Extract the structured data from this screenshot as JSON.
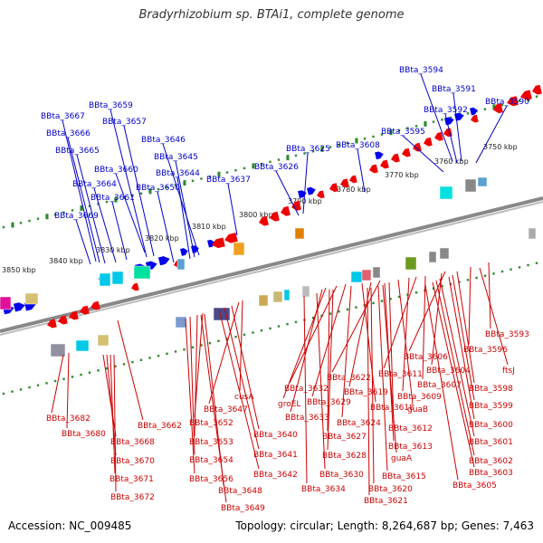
{
  "title": "Bradyrhizobium sp. BTAi1, complete genome",
  "footer": {
    "accession": "Accession: NC_009485",
    "summary": "Topology: circular; Length: 8,264,687 bp; Genes: 7,463"
  },
  "colors": {
    "forward_gene": "#0000ee",
    "reverse_gene": "#ee0000",
    "top_label": "#0000cc",
    "bottom_label": "#cc0000",
    "tick": "#2e8b2e",
    "backbone": "#888888"
  },
  "scale_labels": [
    "3750 kbp",
    "3760 kbp",
    "3770 kbp",
    "3780 kbp",
    "3790 kbp",
    "3800 kbp",
    "3810 kbp",
    "3820 kbp",
    "3830 kbp",
    "3840 kbp",
    "3850 kbp"
  ],
  "top_labels": [
    "BBta_3594",
    "BBta_3591",
    "BBta_3592",
    "BBta_3590",
    "BBta_3595",
    "BBta_3608",
    "BBta_3625",
    "BBta_3626",
    "BBta_3637",
    "BBta_3646",
    "BBta_3645",
    "BBta_3644",
    "BBta_3650",
    "BBta_3659",
    "BBta_3657",
    "BBta_3667",
    "BBta_3666",
    "BBta_3665",
    "BBta_3660",
    "BBta_3664",
    "BBta_3661",
    "BBta_3669"
  ],
  "bottom_labels": [
    "BBta_3593",
    "BBta_3596",
    "BBta_3606",
    "BBta_3604",
    "ftsJ",
    "BBta_3598",
    "BBta_3607",
    "BBta_3611",
    "BBta_3599",
    "BBta_3609",
    "BBta_3622",
    "BBta_3619",
    "BBta_3618",
    "guaB",
    "BBta_3600",
    "BBta_3612",
    "BBta_3632",
    "groEL",
    "BBta_3629",
    "BBta_3633",
    "BBta_3624",
    "BBta_3601",
    "BBta_3613",
    "BBta_3627",
    "guaA",
    "BBta_3602",
    "BBta_3628",
    "BBta_3603",
    "BBta_3630",
    "BBta_3615",
    "BBta_3605",
    "BBta_3634",
    "BBta_3620",
    "BBta_3621",
    "cusA",
    "BBta_3647",
    "BBta_3640",
    "BBta_3641",
    "BBta_3642",
    "BBta_3652",
    "BBta_3653",
    "BBta_3654",
    "BBta_3656",
    "BBta_3648",
    "BBta_3649",
    "BBta_3662",
    "BBta_3682",
    "BBta_3680",
    "BBta_3668",
    "BBta_3670",
    "BBta_3671",
    "BBta_3672"
  ]
}
